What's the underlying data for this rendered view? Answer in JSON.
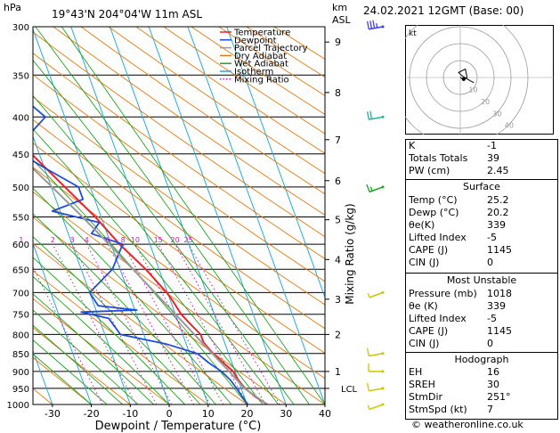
{
  "header": {
    "hpa_unit": "hPa",
    "location": "19°43'N  204°04'W  11m  ASL",
    "km_unit": "km",
    "asl_unit": "ASL",
    "datetime": "24.02.2021  12GMT  (Base: 00)"
  },
  "chart_data": {
    "type": "skew-t log-p",
    "xlabel": "Dewpoint / Temperature (°C)",
    "ylabel": "hPa",
    "right_axis_label": "Mixing Ratio (g/kg)",
    "x_ticks": [
      "-30",
      "-20",
      "-10",
      "0",
      "10",
      "20",
      "30",
      "40"
    ],
    "x_tick_values": [
      -30,
      -20,
      -10,
      0,
      10,
      20,
      30,
      40
    ],
    "xlim": [
      -35,
      40
    ],
    "p_ticks": [
      300,
      350,
      400,
      450,
      500,
      550,
      600,
      650,
      700,
      750,
      800,
      850,
      900,
      950,
      1000
    ],
    "ylim": [
      1000,
      300
    ],
    "km_ticks": [
      {
        "km": "1",
        "p": 900
      },
      {
        "km": "2",
        "p": 800
      },
      {
        "km": "3",
        "p": 715
      },
      {
        "km": "4",
        "p": 630
      },
      {
        "km": "5",
        "p": 555
      },
      {
        "km": "6",
        "p": 490
      },
      {
        "km": "7",
        "p": 430
      },
      {
        "km": "8",
        "p": 370
      },
      {
        "km": "9",
        "p": 315
      }
    ],
    "lcl": {
      "label": "LCL",
      "p": 950
    },
    "mixing_ratio_labels": [
      {
        "label": "1",
        "w": 1
      },
      {
        "label": "2",
        "w": 2
      },
      {
        "label": "3",
        "w": 3
      },
      {
        "label": "4",
        "w": 4
      },
      {
        "label": "6",
        "w": 6
      },
      {
        "label": "8",
        "w": 8
      },
      {
        "label": "10",
        "w": 10
      },
      {
        "label": "15",
        "w": 15
      },
      {
        "label": "20",
        "w": 20
      },
      {
        "label": "25",
        "w": 25
      }
    ],
    "legend": [
      {
        "name": "Temperature",
        "color": "#e8242a",
        "style": "solid"
      },
      {
        "name": "Dewpoint",
        "color": "#1d4ed8",
        "style": "solid"
      },
      {
        "name": "Parcel Trajectory",
        "color": "#9a9a9a",
        "style": "solid"
      },
      {
        "name": "Dry Adiabat",
        "color": "#e07a10",
        "style": "solid"
      },
      {
        "name": "Wet Adiabat",
        "color": "#22a022",
        "style": "solid"
      },
      {
        "name": "Isotherm",
        "color": "#29a9d6",
        "style": "solid"
      },
      {
        "name": "Mixing Ratio",
        "color": "#c21bb5",
        "style": "dotted"
      }
    ],
    "series": [
      {
        "name": "Temperature",
        "points": [
          [
            1000,
            25.2
          ],
          [
            975,
            22.8
          ],
          [
            950,
            21.0
          ],
          [
            925,
            20.0
          ],
          [
            900,
            19.5
          ],
          [
            850,
            16.0
          ],
          [
            820,
            14.6
          ],
          [
            800,
            14.6
          ],
          [
            775,
            13.0
          ],
          [
            750,
            11.5
          ],
          [
            720,
            10.6
          ],
          [
            700,
            9.8
          ],
          [
            650,
            6.6
          ],
          [
            600,
            2.2
          ],
          [
            550,
            -1.5
          ],
          [
            500,
            -6.5
          ],
          [
            450,
            -12.0
          ],
          [
            400,
            -18.5
          ],
          [
            350,
            -27.0
          ],
          [
            300,
            -36.5
          ]
        ]
      },
      {
        "name": "Dewpoint",
        "points": [
          [
            1000,
            20.2
          ],
          [
            975,
            19.5
          ],
          [
            950,
            18.8
          ],
          [
            925,
            18.0
          ],
          [
            900,
            16.5
          ],
          [
            875,
            14.0
          ],
          [
            850,
            12.0
          ],
          [
            825,
            5.0
          ],
          [
            800,
            -6.0
          ],
          [
            760,
            -7.5
          ],
          [
            745,
            -14.0
          ],
          [
            740,
            0.5
          ],
          [
            730,
            -9.0
          ],
          [
            700,
            -10.0
          ],
          [
            650,
            -2.0
          ],
          [
            600,
            3.0
          ],
          [
            580,
            -4.0
          ],
          [
            560,
            -1.0
          ],
          [
            540,
            -12.0
          ],
          [
            520,
            -3.0
          ],
          [
            500,
            -3.0
          ],
          [
            470,
            -10.0
          ],
          [
            440,
            -17.0
          ],
          [
            420,
            -10.0
          ],
          [
            400,
            -5.0
          ],
          [
            370,
            -10.0
          ],
          [
            340,
            -18.0
          ],
          [
            310,
            -26.0
          ],
          [
            300,
            -30.0
          ]
        ]
      },
      {
        "name": "Parcel Trajectory",
        "points": [
          [
            1000,
            25.2
          ],
          [
            950,
            20.8
          ],
          [
            900,
            18.5
          ],
          [
            850,
            15.8
          ],
          [
            800,
            13.0
          ],
          [
            750,
            10.0
          ],
          [
            700,
            6.8
          ],
          [
            650,
            3.3
          ],
          [
            600,
            -0.5
          ],
          [
            550,
            -4.8
          ],
          [
            500,
            -9.8
          ],
          [
            450,
            -15.5
          ],
          [
            400,
            -22.2
          ],
          [
            350,
            -30.0
          ],
          [
            300,
            -39.0
          ]
        ]
      }
    ],
    "wind_barbs": [
      {
        "p": 1000,
        "dir": 250,
        "speed_kt": 7,
        "color": "#c8c800"
      },
      {
        "p": 950,
        "dir": 260,
        "speed_kt": 10,
        "color": "#c8c800"
      },
      {
        "p": 900,
        "dir": 270,
        "speed_kt": 12,
        "color": "#c8c800"
      },
      {
        "p": 850,
        "dir": 260,
        "speed_kt": 10,
        "color": "#c8c800"
      },
      {
        "p": 700,
        "dir": 250,
        "speed_kt": 8,
        "color": "#c8c800"
      },
      {
        "p": 500,
        "dir": 250,
        "speed_kt": 15,
        "color": "#22a022"
      },
      {
        "p": 400,
        "dir": 260,
        "speed_kt": 20,
        "color": "#22b0a0"
      },
      {
        "p": 300,
        "dir": 260,
        "speed_kt": 35,
        "color": "#4040e0"
      }
    ]
  },
  "hodograph": {
    "unit_label": "kt",
    "ring_labels": [
      "10",
      "20",
      "30",
      "40"
    ],
    "trace": [
      [
        0,
        0
      ],
      [
        2,
        -1
      ],
      [
        4,
        0
      ],
      [
        3,
        5
      ],
      [
        -1,
        3
      ],
      [
        1,
        1
      ],
      [
        6,
        -2
      ],
      [
        8,
        -3
      ]
    ],
    "storm_motion": [
      2,
      -1
    ]
  },
  "indices": [
    {
      "label": "K",
      "value": "-1"
    },
    {
      "label": "Totals Totals",
      "value": "39"
    },
    {
      "label": "PW (cm)",
      "value": "2.45"
    }
  ],
  "surface": {
    "title": "Surface",
    "rows": [
      {
        "label": "Temp (°C)",
        "value": "25.2"
      },
      {
        "label": "Dewp (°C)",
        "value": "20.2"
      },
      {
        "label": "θe(K)",
        "value": "339"
      },
      {
        "label": "Lifted Index",
        "value": "-5"
      },
      {
        "label": "CAPE (J)",
        "value": "1145"
      },
      {
        "label": "CIN (J)",
        "value": "0"
      }
    ]
  },
  "most_unstable": {
    "title": "Most Unstable",
    "rows": [
      {
        "label": "Pressure (mb)",
        "value": "1018"
      },
      {
        "label": "θe (K)",
        "value": "339"
      },
      {
        "label": "Lifted Index",
        "value": "-5"
      },
      {
        "label": "CAPE (J)",
        "value": "1145"
      },
      {
        "label": "CIN (J)",
        "value": "0"
      }
    ]
  },
  "hodo_params": {
    "title": "Hodograph",
    "rows": [
      {
        "label": "EH",
        "value": "16"
      },
      {
        "label": "SREH",
        "value": "30"
      },
      {
        "label": "StmDir",
        "value": "251°"
      },
      {
        "label": "StmSpd (kt)",
        "value": "7"
      }
    ]
  },
  "credit": "© weatheronline.co.uk"
}
